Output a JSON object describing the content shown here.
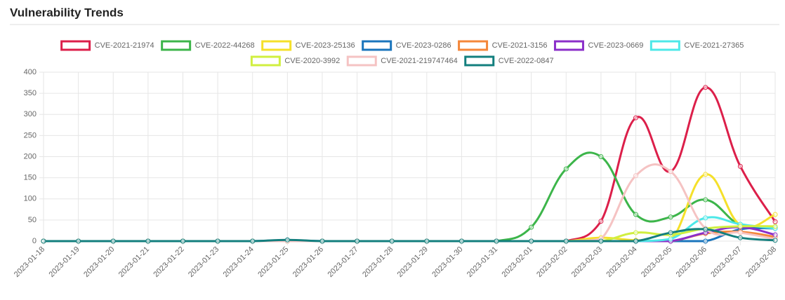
{
  "chart_data": {
    "type": "line",
    "title": "Vulnerability Trends",
    "categories": [
      "2023-01-18",
      "2023-01-19",
      "2023-01-20",
      "2023-01-21",
      "2023-01-22",
      "2023-01-23",
      "2023-01-24",
      "2023-01-25",
      "2023-01-26",
      "2023-01-27",
      "2023-01-28",
      "2023-01-29",
      "2023-01-30",
      "2023-01-31",
      "2023-02-01",
      "2023-02-02",
      "2023-02-03",
      "2023-02-04",
      "2023-02-05",
      "2023-02-06",
      "2023-02-07",
      "2023-02-08"
    ],
    "ylim": [
      0,
      400
    ],
    "yticks": [
      0,
      50,
      100,
      150,
      200,
      250,
      300,
      350,
      400
    ],
    "grid": true,
    "series": [
      {
        "name": "CVE-2021-21974",
        "color": "#dc1f4a",
        "values": [
          0,
          0,
          0,
          0,
          0,
          0,
          0,
          0,
          0,
          0,
          0,
          0,
          0,
          0,
          0,
          0,
          47,
          292,
          165,
          364,
          177,
          46
        ]
      },
      {
        "name": "CVE-2022-44268",
        "color": "#3cb54a",
        "values": [
          0,
          0,
          0,
          0,
          0,
          0,
          0,
          0,
          0,
          0,
          0,
          0,
          0,
          0,
          33,
          171,
          200,
          63,
          57,
          98,
          38,
          33
        ]
      },
      {
        "name": "CVE-2023-25136",
        "color": "#f5e02a",
        "values": [
          0,
          0,
          0,
          0,
          0,
          0,
          0,
          0,
          0,
          0,
          0,
          0,
          0,
          0,
          0,
          0,
          8,
          2,
          2,
          158,
          38,
          63
        ]
      },
      {
        "name": "CVE-2023-0286",
        "color": "#1a75bc",
        "values": [
          0,
          0,
          0,
          0,
          0,
          0,
          0,
          2,
          0,
          0,
          0,
          0,
          0,
          0,
          0,
          0,
          0,
          0,
          0,
          0,
          28,
          30
        ]
      },
      {
        "name": "CVE-2021-3156",
        "color": "#f4873a",
        "values": [
          0,
          0,
          0,
          0,
          0,
          0,
          0,
          0,
          0,
          0,
          0,
          0,
          0,
          0,
          0,
          0,
          0,
          0,
          0,
          18,
          22,
          10
        ]
      },
      {
        "name": "CVE-2023-0669",
        "color": "#8b2fc9",
        "values": [
          0,
          0,
          0,
          0,
          0,
          0,
          0,
          0,
          0,
          0,
          0,
          0,
          0,
          0,
          0,
          0,
          0,
          0,
          0,
          20,
          33,
          15
        ]
      },
      {
        "name": "CVE-2021-27365",
        "color": "#4de8e8",
        "values": [
          0,
          0,
          0,
          0,
          0,
          0,
          0,
          0,
          0,
          0,
          0,
          0,
          0,
          0,
          0,
          0,
          0,
          0,
          5,
          55,
          40,
          30
        ]
      },
      {
        "name": "CVE-2020-3992",
        "color": "#d0ef3f",
        "values": [
          0,
          0,
          0,
          0,
          0,
          0,
          0,
          0,
          0,
          0,
          0,
          0,
          0,
          0,
          0,
          0,
          0,
          20,
          15,
          30,
          35,
          35
        ]
      },
      {
        "name": "CVE-2021-219747464",
        "color": "#f5c3c3",
        "values": [
          0,
          0,
          0,
          0,
          0,
          0,
          0,
          0,
          0,
          0,
          0,
          0,
          0,
          0,
          0,
          0,
          5,
          155,
          165,
          30,
          20,
          5
        ]
      },
      {
        "name": "CVE-2022-0847",
        "color": "#137f7e",
        "values": [
          0,
          0,
          0,
          0,
          0,
          0,
          0,
          3,
          0,
          0,
          0,
          0,
          0,
          0,
          0,
          0,
          0,
          0,
          20,
          28,
          8,
          2
        ]
      }
    ]
  }
}
